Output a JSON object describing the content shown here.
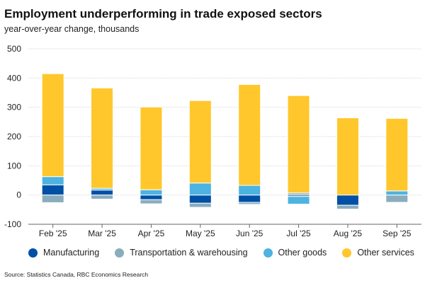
{
  "chart_data": {
    "type": "bar",
    "stacked": true,
    "title": "Employment underperforming in trade exposed sectors",
    "subtitle": "year-over-year change, thousands",
    "categories": [
      "Feb '25",
      "Mar '25",
      "Apr '25",
      "May '25",
      "Jun '25",
      "Jul '25",
      "Aug '25",
      "Sep '25"
    ],
    "series": [
      {
        "name": "Manufacturing",
        "color": "#0050a5",
        "values": [
          35,
          17,
          -16,
          -28,
          -25,
          -5,
          -35,
          0
        ]
      },
      {
        "name": "Transportation & warehousing",
        "color": "#8aadbe",
        "values": [
          -26,
          -14,
          -14,
          -14,
          -7,
          7,
          -13,
          -25
        ]
      },
      {
        "name": "Other goods",
        "color": "#4db3e0",
        "values": [
          28,
          6,
          18,
          41,
          33,
          -26,
          0,
          14
        ]
      },
      {
        "name": "Other services",
        "color": "#ffc72c",
        "values": [
          352,
          343,
          283,
          282,
          345,
          333,
          264,
          248
        ]
      }
    ],
    "ylim": [
      -100,
      500
    ],
    "yticks": [
      -100,
      0,
      100,
      200,
      300,
      400,
      500
    ],
    "grid": true,
    "legend_position": "bottom",
    "source": "Source: Statistics Canada, RBC Economics Research"
  }
}
